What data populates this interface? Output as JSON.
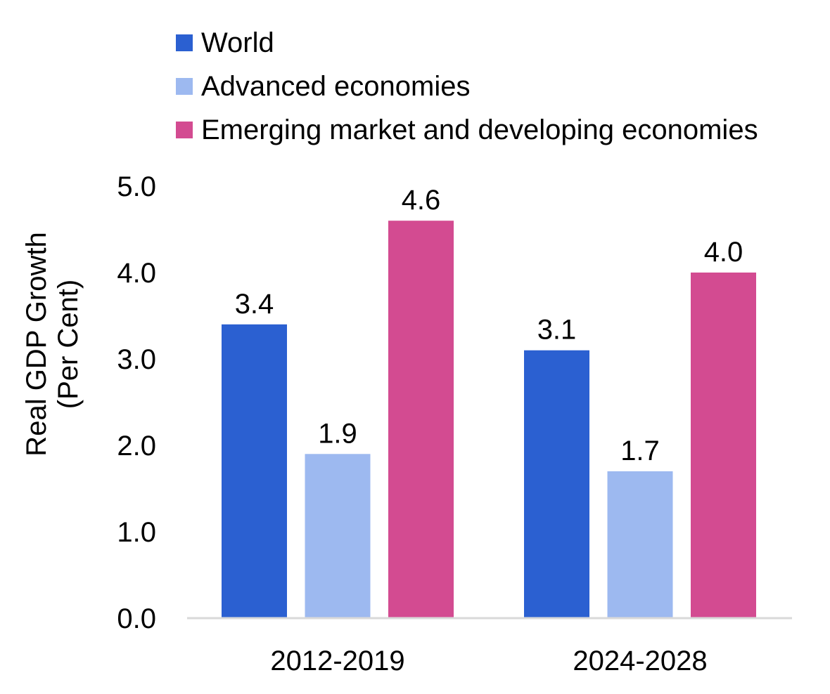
{
  "chart_data": {
    "type": "bar",
    "title": "",
    "xlabel": "",
    "ylabel": "Real GDP Growth\n(Per Cent)",
    "ylabel_lines": [
      "Real GDP Growth",
      "(Per Cent)"
    ],
    "categories": [
      "2012-2019",
      "2024-2028"
    ],
    "series": [
      {
        "name": "World",
        "color": "#2b60d1",
        "values": [
          3.4,
          3.1
        ],
        "labels": [
          "3.4",
          "3.1"
        ]
      },
      {
        "name": "Advanced economies",
        "color": "#9db9f0",
        "values": [
          1.9,
          1.7
        ],
        "labels": [
          "1.9",
          "1.7"
        ]
      },
      {
        "name": "Emerging market and developing economies",
        "color": "#d34b91",
        "values": [
          4.6,
          4.0
        ],
        "labels": [
          "4.6",
          "4.0"
        ]
      }
    ],
    "ylim": [
      0,
      5
    ],
    "yticks": [
      0,
      1,
      2,
      3,
      4,
      5
    ],
    "ytick_labels": [
      "0.0",
      "1.0",
      "2.0",
      "3.0",
      "4.0",
      "5.0"
    ],
    "grid": false,
    "legend_position": "top",
    "data_labels": true
  }
}
